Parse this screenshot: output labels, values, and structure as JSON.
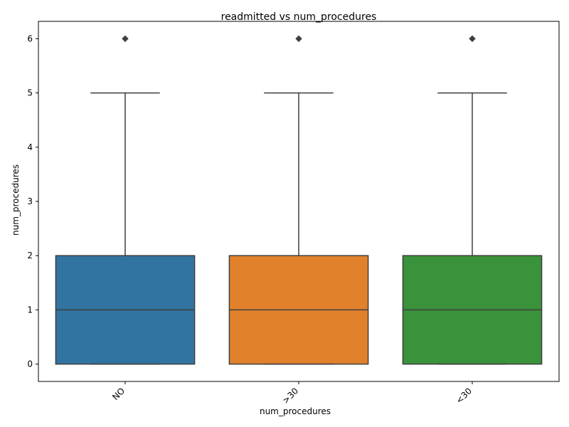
{
  "chart_data": {
    "type": "box",
    "title": "readmitted vs num_procedures",
    "xlabel": "num_procedures",
    "ylabel": "num_procedures",
    "ylim": [
      -0.32,
      6.32
    ],
    "yticks": [
      0,
      1,
      2,
      3,
      4,
      5,
      6
    ],
    "x_tick_rotation": 45,
    "grid": false,
    "legend": "none",
    "categories": [
      "NO",
      ">30",
      "<30"
    ],
    "boxes": [
      {
        "category": "NO",
        "min": 0,
        "q1": 0,
        "median": 1,
        "q3": 2,
        "max": 5,
        "outliers": [
          6
        ],
        "color": "#3274a1"
      },
      {
        "category": ">30",
        "min": 0,
        "q1": 0,
        "median": 1,
        "q3": 2,
        "max": 5,
        "outliers": [
          6
        ],
        "color": "#e1812c"
      },
      {
        "category": "<30",
        "min": 0,
        "q1": 0,
        "median": 1,
        "q3": 2,
        "max": 5,
        "outliers": [
          6
        ],
        "color": "#3a923a"
      }
    ],
    "line_color": "#3f3f3f"
  }
}
